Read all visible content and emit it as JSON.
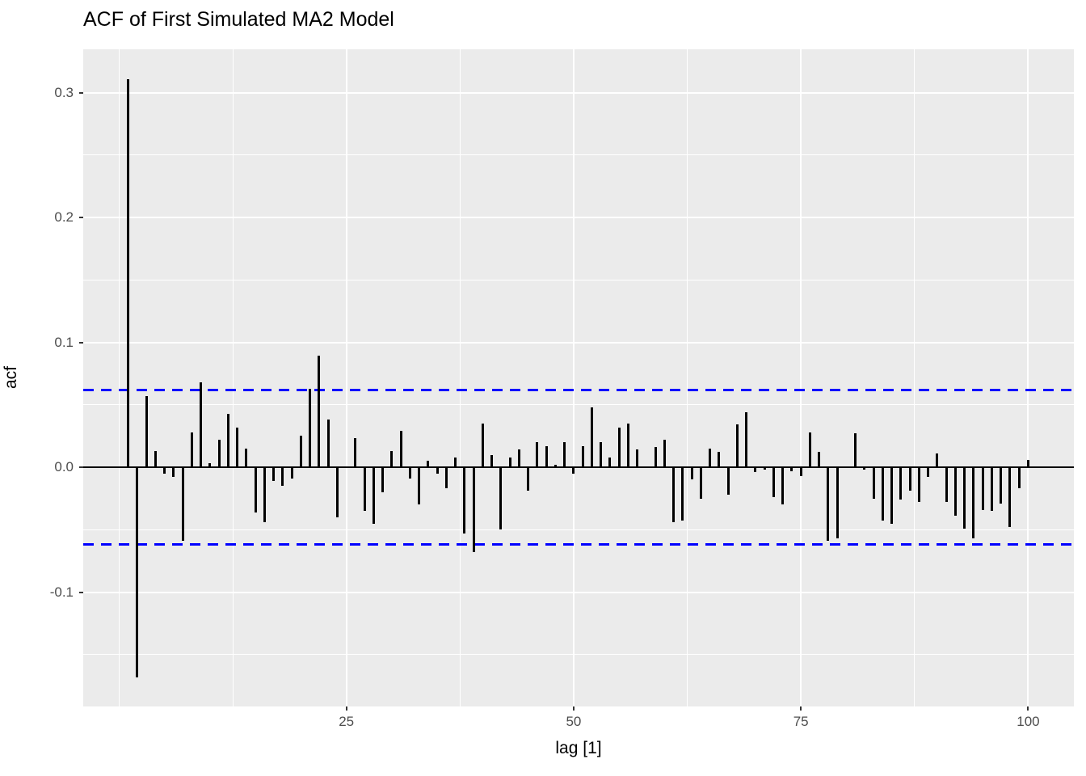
{
  "figure": {
    "title": "ACF of First Simulated MA2 Model",
    "x_axis_label": "lag [1]",
    "y_axis_label": "acf",
    "colors": {
      "panel_background": "#EBEBEB",
      "gridline": "#FFFFFF",
      "bar": "#000000",
      "confidence_line": "#0000FF",
      "axis_tick_text": "#4D4D4D",
      "title_text": "#000000"
    }
  },
  "chart_data": {
    "type": "bar",
    "subtype": "acf-lollipop",
    "title": "ACF of First Simulated MA2 Model",
    "xlabel": "lag [1]",
    "ylabel": "acf",
    "lag_start": 1,
    "values": [
      0.311,
      -0.168,
      0.057,
      0.013,
      -0.005,
      -0.008,
      -0.059,
      0.028,
      0.068,
      0.003,
      0.022,
      0.043,
      0.032,
      0.015,
      -0.036,
      -0.044,
      -0.011,
      -0.015,
      -0.009,
      0.025,
      0.063,
      0.089,
      0.038,
      -0.04,
      0.0,
      0.023,
      -0.035,
      -0.045,
      -0.02,
      0.013,
      0.029,
      -0.009,
      -0.03,
      0.005,
      -0.005,
      -0.017,
      0.008,
      -0.053,
      -0.068,
      0.035,
      0.01,
      -0.05,
      0.008,
      0.014,
      -0.019,
      0.02,
      0.017,
      0.002,
      0.02,
      -0.005,
      0.017,
      0.048,
      0.02,
      0.008,
      0.032,
      0.035,
      0.014,
      0.0,
      0.016,
      0.022,
      -0.044,
      -0.043,
      -0.01,
      -0.025,
      0.015,
      0.012,
      -0.022,
      0.034,
      0.044,
      -0.004,
      -0.002,
      -0.024,
      -0.03,
      -0.003,
      -0.007,
      0.028,
      0.012,
      -0.059,
      -0.057,
      0.0,
      0.027,
      -0.002,
      -0.025,
      -0.043,
      -0.045,
      -0.026,
      -0.019,
      -0.028,
      -0.008,
      0.011,
      -0.028,
      -0.039,
      -0.049,
      -0.057,
      -0.034,
      -0.035,
      -0.029,
      -0.048,
      -0.017,
      0.006
    ],
    "confidence_bounds": [
      -0.062,
      0.062
    ],
    "confidence_line_style": "dashed",
    "x_ticks": [
      25,
      50,
      75,
      100
    ],
    "y_ticks": [
      0.3,
      0.2,
      0.1,
      0.0,
      -0.1
    ],
    "y_tick_labels": [
      "0.3",
      "0.2",
      "0.1",
      "0.0",
      "-0.1"
    ],
    "x_tick_labels": [
      "25",
      "50",
      "75",
      "100"
    ],
    "ylim": [
      -0.192,
      0.335
    ],
    "xlim": [
      -3.95,
      104.95
    ],
    "grid": true,
    "legend": false
  }
}
